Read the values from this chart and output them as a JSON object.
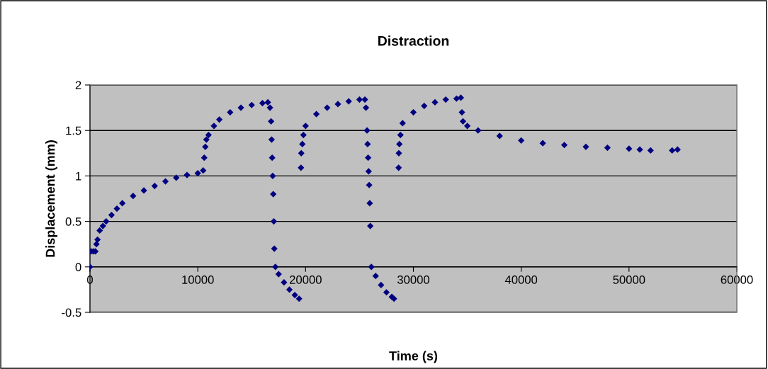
{
  "chart_data": {
    "type": "scatter",
    "title": "Distraction",
    "xlabel": "Time (s)",
    "ylabel": "Displacement (mm)",
    "x": [
      0,
      100,
      300,
      500,
      600,
      700,
      900,
      1200,
      1500,
      2000,
      2500,
      3000,
      4000,
      5000,
      6000,
      7000,
      8000,
      9000,
      10000,
      10500,
      10600,
      10700,
      10800,
      11000,
      11500,
      12000,
      13000,
      14000,
      15000,
      16000,
      16500,
      16700,
      16800,
      16850,
      16900,
      16950,
      17000,
      17050,
      17100,
      17200,
      17500,
      18000,
      18500,
      19000,
      19400,
      19570,
      19600,
      19700,
      19800,
      20000,
      21000,
      22000,
      23000,
      24000,
      25000,
      25500,
      25600,
      25700,
      25750,
      25800,
      25850,
      25900,
      25950,
      26000,
      26100,
      26500,
      27000,
      27500,
      28000,
      28200,
      28630,
      28650,
      28700,
      28800,
      29000,
      30000,
      31000,
      32000,
      33000,
      34000,
      34400,
      34500,
      34600,
      35000,
      36000,
      38000,
      40000,
      42000,
      44000,
      46000,
      48000,
      50000,
      51000,
      52000,
      54000,
      54500
    ],
    "values": [
      0,
      0.17,
      0.17,
      0.17,
      0.25,
      0.3,
      0.4,
      0.45,
      0.5,
      0.57,
      0.64,
      0.7,
      0.78,
      0.84,
      0.89,
      0.94,
      0.98,
      1.01,
      1.03,
      1.06,
      1.2,
      1.32,
      1.4,
      1.45,
      1.55,
      1.62,
      1.7,
      1.75,
      1.78,
      1.8,
      1.81,
      1.75,
      1.6,
      1.4,
      1.2,
      1.0,
      0.8,
      0.5,
      0.2,
      0.0,
      -0.08,
      -0.17,
      -0.25,
      -0.31,
      -0.35,
      1.09,
      1.25,
      1.35,
      1.45,
      1.55,
      1.68,
      1.75,
      1.79,
      1.82,
      1.84,
      1.84,
      1.75,
      1.5,
      1.35,
      1.2,
      1.05,
      0.9,
      0.7,
      0.45,
      0.0,
      -0.1,
      -0.2,
      -0.28,
      -0.33,
      -0.35,
      1.09,
      1.25,
      1.35,
      1.45,
      1.58,
      1.7,
      1.77,
      1.81,
      1.84,
      1.85,
      1.86,
      1.7,
      1.6,
      1.55,
      1.5,
      1.44,
      1.39,
      1.36,
      1.34,
      1.32,
      1.31,
      1.3,
      1.29,
      1.28,
      1.28,
      1.29
    ],
    "color": "#000080",
    "marker": "diamond",
    "xlim": [
      0,
      60000
    ],
    "xticks": [
      0,
      10000,
      20000,
      30000,
      40000,
      50000,
      60000
    ],
    "ylim": [
      -0.5,
      2
    ],
    "yticks": [
      -0.5,
      0,
      0.5,
      1,
      1.5,
      2
    ],
    "grid": "y",
    "legend": false
  }
}
